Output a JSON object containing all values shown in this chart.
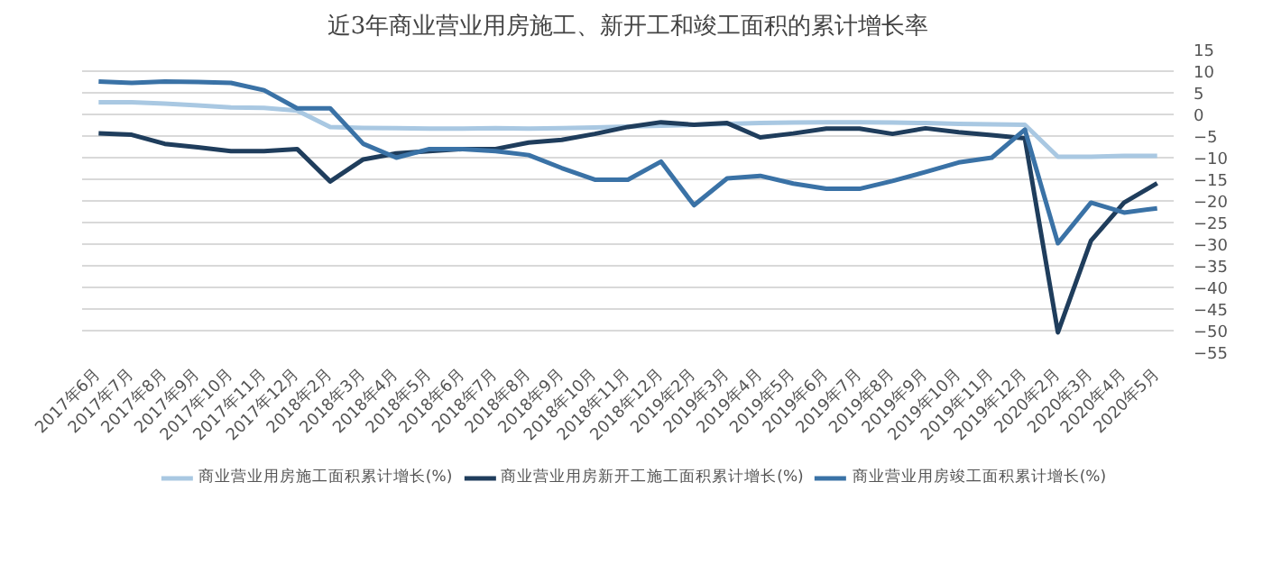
{
  "chart_data": {
    "type": "line",
    "title": "近3年商业营业用房施工、新开工和竣工面积的累计增长率",
    "categories": [
      "2017年6月",
      "2017年7月",
      "2017年8月",
      "2017年9月",
      "2017年10月",
      "2017年11月",
      "2017年12月",
      "2018年2月",
      "2018年3月",
      "2018年4月",
      "2018年5月",
      "2018年6月",
      "2018年7月",
      "2018年8月",
      "2018年9月",
      "2018年10月",
      "2018年11月",
      "2018年12月",
      "2019年2月",
      "2019年3月",
      "2019年4月",
      "2019年5月",
      "2019年6月",
      "2019年7月",
      "2019年8月",
      "2019年9月",
      "2019年10月",
      "2019年11月",
      "2019年12月",
      "2020年2月",
      "2020年3月",
      "2020年4月",
      "2020年5月"
    ],
    "series": [
      {
        "name": "商业营业用房施工面积累计增长(%)",
        "color": "#a9c8e2",
        "values": [
          2.8,
          2.8,
          2.5,
          2.1,
          1.6,
          1.5,
          0.9,
          -2.9,
          -3.1,
          -3.2,
          -3.3,
          -3.3,
          -3.2,
          -3.3,
          -3.2,
          -3,
          -2.8,
          -2.6,
          -2.4,
          -2.2,
          -2,
          -1.9,
          -1.8,
          -1.8,
          -1.9,
          -2,
          -2.2,
          -2.3,
          -2.4,
          -9.8,
          -9.8,
          -9.6,
          -9.6
        ]
      },
      {
        "name": "商业营业用房新开工施工面积累计增长(%)",
        "color": "#1f3d5c",
        "values": [
          -4.4,
          -4.7,
          -6.8,
          -7.6,
          -8.5,
          -8.5,
          -8,
          -15.5,
          -10.4,
          -9,
          -8.5,
          -8,
          -8,
          -6.5,
          -5.9,
          -4.5,
          -2.9,
          -1.8,
          -2.4,
          -2,
          -5.3,
          -4.4,
          -3.3,
          -3.3,
          -4.5,
          -3.2,
          -4.1,
          -4.8,
          -5.5,
          -50.4,
          -29.2,
          -20.4,
          -15.9
        ]
      },
      {
        "name": "商业营业用房竣工面积累计增长(%)",
        "color": "#3a72a6",
        "values": [
          7.6,
          7.3,
          7.6,
          7.5,
          7.3,
          5.6,
          1.4,
          1.4,
          -6.8,
          -10,
          -8,
          -8,
          -8.5,
          -9.4,
          -12.4,
          -15.1,
          -15.1,
          -10.9,
          -21,
          -14.8,
          -14.2,
          -16,
          -17.2,
          -17.2,
          -15.4,
          -13.3,
          -11.1,
          -10,
          -3.5,
          -29.8,
          -20.4,
          -22.7,
          -21.7
        ]
      }
    ],
    "ylim": [
      -55,
      15
    ],
    "yticks": [
      -55,
      -50,
      -45,
      -40,
      -35,
      -30,
      -25,
      -20,
      -15,
      -10,
      -5,
      0,
      5,
      10,
      15
    ],
    "grid": "y",
    "legend": "bottom",
    "marker": "none",
    "line_style": "solid"
  }
}
